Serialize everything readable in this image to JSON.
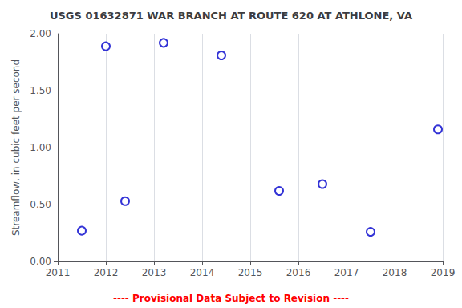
{
  "chart_data": {
    "type": "scatter",
    "title": "USGS 01632871 WAR BRANCH AT ROUTE 620 AT ATHLONE, VA",
    "ylabel": "Streamflow, in cubic feet per second",
    "x": [
      2011.5,
      2012.0,
      2012.4,
      2013.2,
      2014.4,
      2015.6,
      2016.5,
      2017.5,
      2018.9
    ],
    "values": [
      0.27,
      1.89,
      0.53,
      1.92,
      1.81,
      0.62,
      0.68,
      0.26,
      1.16
    ],
    "color": "#0000CC",
    "marker": "open circle",
    "xlim": [
      2011,
      2019
    ],
    "xticks": [
      2011,
      2012,
      2013,
      2014,
      2015,
      2016,
      2017,
      2018,
      2019
    ],
    "ylim": [
      0.0,
      2.0
    ],
    "yticks": [
      {
        "value": 0.0,
        "label": "0.00"
      },
      {
        "value": 0.5,
        "label": "0.50"
      },
      {
        "value": 1.0,
        "label": "1.00"
      },
      {
        "value": 1.5,
        "label": "1.50"
      },
      {
        "value": 2.0,
        "label": "2.00"
      }
    ],
    "grid": true,
    "annotations": [
      {
        "text": "---- Provisional Data Subject to Revision ----",
        "color": "#ff0000"
      }
    ]
  }
}
